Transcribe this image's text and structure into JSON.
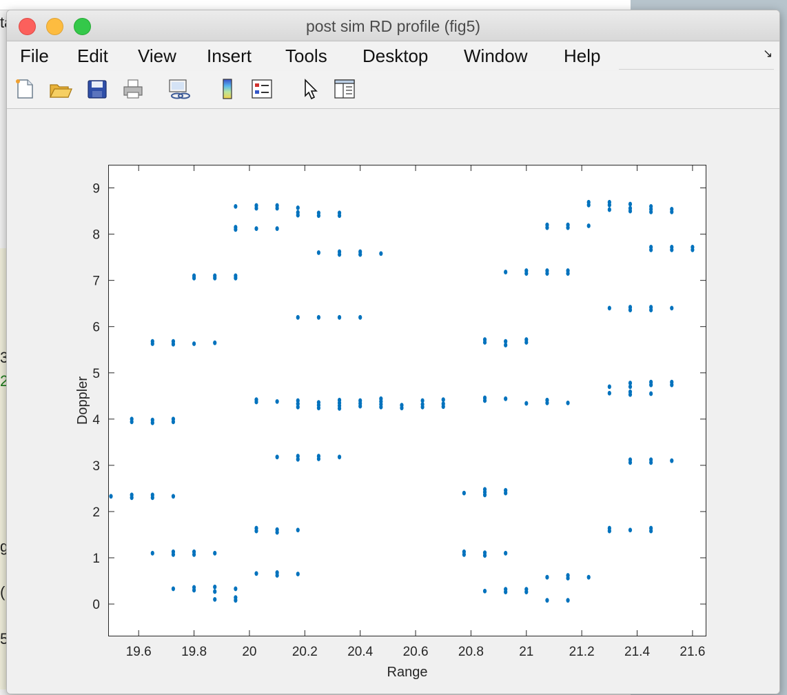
{
  "window": {
    "title": "post sim RD profile (fig5)"
  },
  "menu": [
    "File",
    "Edit",
    "View",
    "Insert",
    "Tools",
    "Desktop",
    "Window",
    "Help"
  ],
  "toolbar": [
    "new-figure-icon",
    "open-file-icon",
    "save-icon",
    "print-icon",
    "link-plot-icon",
    "colorbar-icon",
    "legend-icon",
    "pointer-icon",
    "property-editor-icon"
  ],
  "background": {
    "edge_texts": [
      "ta",
      "3",
      "2",
      "g",
      "(",
      "5"
    ]
  },
  "colors": {
    "marker": "#0072bd",
    "axes_bg": "#ffffff",
    "figure_bg": "#f0f0f0"
  },
  "chart_data": {
    "type": "scatter",
    "title": "",
    "xlabel": "Range",
    "ylabel": "Doppler",
    "xlim": [
      19.49,
      21.65
    ],
    "ylim": [
      -0.7,
      9.5
    ],
    "xticks": [
      19.6,
      19.8,
      20,
      20.2,
      20.4,
      20.6,
      20.8,
      21,
      21.2,
      21.4,
      21.6
    ],
    "xticklabels": [
      "19.6",
      "19.8",
      "20",
      "20.2",
      "20.4",
      "20.6",
      "20.8",
      "21",
      "21.2",
      "21.4",
      "21.6"
    ],
    "yticks": [
      0,
      1,
      2,
      3,
      4,
      5,
      6,
      7,
      8,
      9
    ],
    "yticklabels": [
      "0",
      "1",
      "2",
      "3",
      "4",
      "5",
      "6",
      "7",
      "8",
      "9"
    ],
    "grid": false,
    "marker_color": "#0072bd",
    "points": [
      [
        19.5,
        2.33
      ],
      [
        19.575,
        2.3
      ],
      [
        19.575,
        2.36
      ],
      [
        19.575,
        3.94
      ],
      [
        19.575,
        4.0
      ],
      [
        19.65,
        1.1
      ],
      [
        19.65,
        2.3
      ],
      [
        19.65,
        2.36
      ],
      [
        19.65,
        3.92
      ],
      [
        19.65,
        3.98
      ],
      [
        19.65,
        5.63
      ],
      [
        19.65,
        5.68
      ],
      [
        19.725,
        0.33
      ],
      [
        19.725,
        1.07
      ],
      [
        19.725,
        1.13
      ],
      [
        19.725,
        2.33
      ],
      [
        19.725,
        3.94
      ],
      [
        19.725,
        4.0
      ],
      [
        19.725,
        5.62
      ],
      [
        19.725,
        5.68
      ],
      [
        19.8,
        0.3
      ],
      [
        19.8,
        0.36
      ],
      [
        19.8,
        1.07
      ],
      [
        19.8,
        1.13
      ],
      [
        19.8,
        5.63
      ],
      [
        19.8,
        7.05
      ],
      [
        19.8,
        7.1
      ],
      [
        19.875,
        0.1
      ],
      [
        19.875,
        0.27
      ],
      [
        19.875,
        0.37
      ],
      [
        19.875,
        1.1
      ],
      [
        19.875,
        5.65
      ],
      [
        19.875,
        7.05
      ],
      [
        19.875,
        7.1
      ],
      [
        19.95,
        0.08
      ],
      [
        19.95,
        0.14
      ],
      [
        19.95,
        0.33
      ],
      [
        19.95,
        7.05
      ],
      [
        19.95,
        7.1
      ],
      [
        19.95,
        8.1
      ],
      [
        19.95,
        8.15
      ],
      [
        19.95,
        8.6
      ],
      [
        20.025,
        0.66
      ],
      [
        20.025,
        1.58
      ],
      [
        20.025,
        1.64
      ],
      [
        20.025,
        4.37
      ],
      [
        20.025,
        4.42
      ],
      [
        20.025,
        8.12
      ],
      [
        20.025,
        8.56
      ],
      [
        20.025,
        8.62
      ],
      [
        20.1,
        0.62
      ],
      [
        20.1,
        0.68
      ],
      [
        20.1,
        1.55
      ],
      [
        20.1,
        1.61
      ],
      [
        20.1,
        3.18
      ],
      [
        20.1,
        4.38
      ],
      [
        20.1,
        8.12
      ],
      [
        20.1,
        8.56
      ],
      [
        20.1,
        8.62
      ],
      [
        20.175,
        0.65
      ],
      [
        20.175,
        1.6
      ],
      [
        20.175,
        3.13
      ],
      [
        20.175,
        3.2
      ],
      [
        20.175,
        4.26
      ],
      [
        20.175,
        4.33
      ],
      [
        20.175,
        4.4
      ],
      [
        20.175,
        6.2
      ],
      [
        20.175,
        8.41
      ],
      [
        20.175,
        8.47
      ],
      [
        20.175,
        8.57
      ],
      [
        20.25,
        3.14
      ],
      [
        20.25,
        3.2
      ],
      [
        20.25,
        4.24
      ],
      [
        20.25,
        4.3
      ],
      [
        20.25,
        4.36
      ],
      [
        20.25,
        6.2
      ],
      [
        20.25,
        7.6
      ],
      [
        20.25,
        8.4
      ],
      [
        20.25,
        8.46
      ],
      [
        20.325,
        3.18
      ],
      [
        20.325,
        4.23
      ],
      [
        20.325,
        4.29
      ],
      [
        20.325,
        4.35
      ],
      [
        20.325,
        4.41
      ],
      [
        20.325,
        6.2
      ],
      [
        20.325,
        7.56
      ],
      [
        20.325,
        7.62
      ],
      [
        20.325,
        8.4
      ],
      [
        20.325,
        8.46
      ],
      [
        20.4,
        4.28
      ],
      [
        20.4,
        4.34
      ],
      [
        20.4,
        4.4
      ],
      [
        20.4,
        6.2
      ],
      [
        20.4,
        7.56
      ],
      [
        20.4,
        7.62
      ],
      [
        20.475,
        4.26
      ],
      [
        20.475,
        4.32
      ],
      [
        20.475,
        4.38
      ],
      [
        20.475,
        4.44
      ],
      [
        20.475,
        7.58
      ],
      [
        20.55,
        4.24
      ],
      [
        20.55,
        4.3
      ],
      [
        20.625,
        4.26
      ],
      [
        20.625,
        4.32
      ],
      [
        20.625,
        4.4
      ],
      [
        20.7,
        4.27
      ],
      [
        20.7,
        4.33
      ],
      [
        20.7,
        4.42
      ],
      [
        20.775,
        1.07
      ],
      [
        20.775,
        1.13
      ],
      [
        20.775,
        2.4
      ],
      [
        20.85,
        0.28
      ],
      [
        20.85,
        1.05
      ],
      [
        20.85,
        1.11
      ],
      [
        20.85,
        2.36
      ],
      [
        20.85,
        2.42
      ],
      [
        20.85,
        2.48
      ],
      [
        20.85,
        4.4
      ],
      [
        20.85,
        4.46
      ],
      [
        20.85,
        5.66
      ],
      [
        20.85,
        5.72
      ],
      [
        20.925,
        0.26
      ],
      [
        20.925,
        0.32
      ],
      [
        20.925,
        1.1
      ],
      [
        20.925,
        2.4
      ],
      [
        20.925,
        2.46
      ],
      [
        20.925,
        4.44
      ],
      [
        20.925,
        5.6
      ],
      [
        20.925,
        5.68
      ],
      [
        20.925,
        7.18
      ],
      [
        21.0,
        0.26
      ],
      [
        21.0,
        0.32
      ],
      [
        21.0,
        4.34
      ],
      [
        21.0,
        5.66
      ],
      [
        21.0,
        5.72
      ],
      [
        21.0,
        7.15
      ],
      [
        21.0,
        7.21
      ],
      [
        21.075,
        0.08
      ],
      [
        21.075,
        0.58
      ],
      [
        21.075,
        4.35
      ],
      [
        21.075,
        4.41
      ],
      [
        21.075,
        7.15
      ],
      [
        21.075,
        7.21
      ],
      [
        21.075,
        8.14
      ],
      [
        21.075,
        8.2
      ],
      [
        21.15,
        0.08
      ],
      [
        21.15,
        0.56
      ],
      [
        21.15,
        0.62
      ],
      [
        21.15,
        4.35
      ],
      [
        21.15,
        7.15
      ],
      [
        21.15,
        7.21
      ],
      [
        21.15,
        8.14
      ],
      [
        21.15,
        8.2
      ],
      [
        21.225,
        0.58
      ],
      [
        21.225,
        8.18
      ],
      [
        21.225,
        8.63
      ],
      [
        21.225,
        8.69
      ],
      [
        21.3,
        1.58
      ],
      [
        21.3,
        1.64
      ],
      [
        21.3,
        4.56
      ],
      [
        21.3,
        4.7
      ],
      [
        21.3,
        6.4
      ],
      [
        21.3,
        8.53
      ],
      [
        21.3,
        8.63
      ],
      [
        21.3,
        8.69
      ],
      [
        21.375,
        1.6
      ],
      [
        21.375,
        3.06
      ],
      [
        21.375,
        3.12
      ],
      [
        21.375,
        4.53
      ],
      [
        21.375,
        4.59
      ],
      [
        21.375,
        4.7
      ],
      [
        21.375,
        4.78
      ],
      [
        21.375,
        6.36
      ],
      [
        21.375,
        6.42
      ],
      [
        21.375,
        8.5
      ],
      [
        21.375,
        8.56
      ],
      [
        21.375,
        8.65
      ],
      [
        21.45,
        1.58
      ],
      [
        21.45,
        1.64
      ],
      [
        21.45,
        3.06
      ],
      [
        21.45,
        3.12
      ],
      [
        21.45,
        4.55
      ],
      [
        21.45,
        4.74
      ],
      [
        21.45,
        4.8
      ],
      [
        21.45,
        6.36
      ],
      [
        21.45,
        6.42
      ],
      [
        21.45,
        7.66
      ],
      [
        21.45,
        7.72
      ],
      [
        21.45,
        8.48
      ],
      [
        21.45,
        8.54
      ],
      [
        21.45,
        8.6
      ],
      [
        21.525,
        3.1
      ],
      [
        21.525,
        4.74
      ],
      [
        21.525,
        4.8
      ],
      [
        21.525,
        6.4
      ],
      [
        21.525,
        7.66
      ],
      [
        21.525,
        7.72
      ],
      [
        21.525,
        8.48
      ],
      [
        21.525,
        8.54
      ],
      [
        21.6,
        7.66
      ],
      [
        21.6,
        7.72
      ]
    ]
  }
}
